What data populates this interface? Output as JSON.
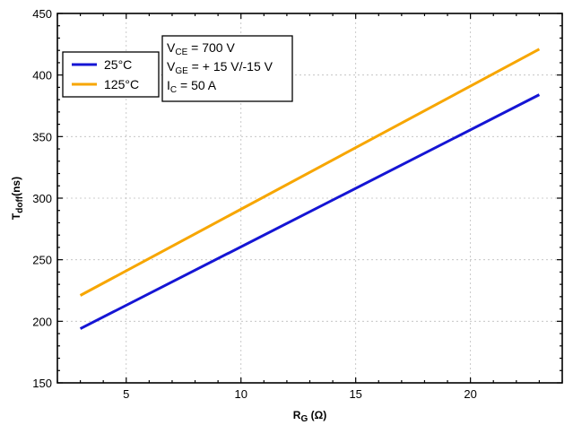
{
  "chart_data": {
    "type": "line",
    "xlabel": {
      "main": "R",
      "sub": "G",
      "unit": " (Ω)"
    },
    "ylabel": {
      "main": "T",
      "sub": "doff",
      "unit": "(ns)"
    },
    "xlim": [
      2,
      24
    ],
    "ylim": [
      150,
      450
    ],
    "x_ticks": [
      5,
      10,
      15,
      20
    ],
    "y_ticks": [
      150,
      200,
      250,
      300,
      350,
      400,
      450
    ],
    "grid": true,
    "legend": "top-left",
    "series": [
      {
        "name": "25°C",
        "color": "#1515d4",
        "x": [
          3,
          23
        ],
        "y": [
          194,
          384
        ]
      },
      {
        "name": "125°C",
        "color": "#f7a600",
        "x": [
          3,
          23
        ],
        "y": [
          221,
          421
        ]
      }
    ],
    "annotation": [
      {
        "main": "V",
        "sub": "CE",
        "rest": " = 700 V"
      },
      {
        "main": "V",
        "sub": "GE",
        "rest": " = + 15 V/-15 V"
      },
      {
        "main": "I",
        "sub": "C",
        "rest": " = 50 A"
      }
    ]
  }
}
